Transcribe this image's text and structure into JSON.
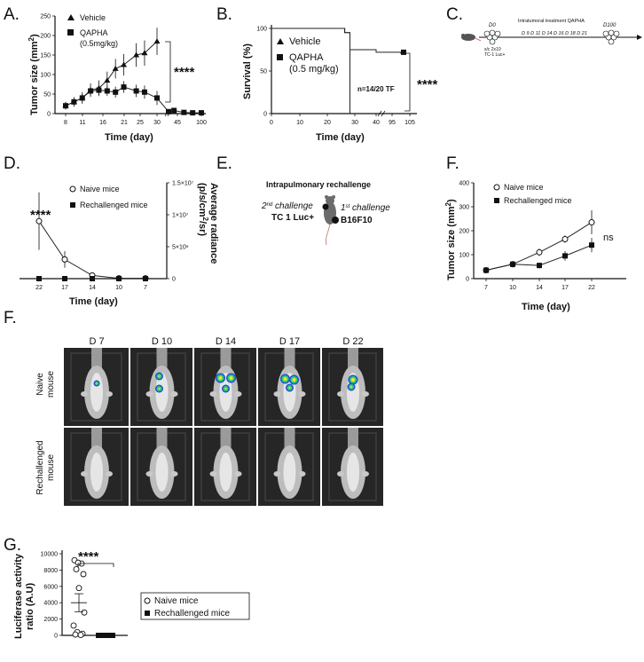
{
  "panels": {
    "A": "A.",
    "B": "B.",
    "C": "C.",
    "D": "D.",
    "E": "E.",
    "F1": "F.",
    "F2": "F.",
    "G": "G."
  },
  "panelA": {
    "ylabel": "Tumor size (mm²)",
    "ylabel_base": "Tumor size (mm",
    "ylabel_sup": "2",
    "ylabel_end": ")",
    "xlabel": "Time (day)",
    "legend": [
      "Vehicle",
      "QAPHA",
      "(0.5mg/kg)"
    ],
    "significance": "****",
    "yticks": [
      "0",
      "50",
      "100",
      "150",
      "200",
      "250"
    ],
    "xticks": [
      "8",
      "11",
      "16",
      "21",
      "25",
      "30",
      "45",
      "100"
    ]
  },
  "panelB": {
    "ylabel": "Survival (%)",
    "xlabel": "Time (day)",
    "legend": [
      "Vehicle",
      "QAPHA",
      "(0.5 mg/kg)"
    ],
    "annotation": "n=14/20 TF",
    "significance": "****",
    "yticks": [
      "0",
      "50",
      "100"
    ],
    "xticks": [
      "0",
      "10",
      "20",
      "30",
      "40",
      "95",
      "105"
    ]
  },
  "panelC": {
    "d0": "D0",
    "treatment": "Intratumoral treatment  QAPHA",
    "days": "D 9  D 11  D 14  D 16 D 18 D 21",
    "d100": "D100",
    "sc1": "s/c 2x10",
    "sc2": "TC-1 Luc+"
  },
  "panelD": {
    "xlabel": "Time (day)",
    "ylabel_base": "Average radiance",
    "ylabel_2": "(p/s/cm",
    "ylabel_sup": "2",
    "ylabel_end": "/sr)",
    "legend": [
      "Naive mice",
      "Rechallenged mice"
    ],
    "significance": "****",
    "yticks": [
      "0",
      "5×10⁶",
      "1×10⁷",
      "1.5×10⁷"
    ],
    "xticks": [
      "22",
      "17",
      "14",
      "10",
      "7"
    ]
  },
  "panelE": {
    "title": "Intrapulmonary rechallenge",
    "second": "2",
    "second_sup": "nd",
    "second_rest": " challenge",
    "second_line2": "TC 1 Luc+",
    "first": "1",
    "first_sup": "st",
    "first_rest": " challenge",
    "first_line2": "B16F10"
  },
  "panelF1": {
    "ylabel": "Tumor size (mm²)",
    "ylabel_base": "Tumor size (mm",
    "ylabel_sup": "2",
    "ylabel_end": ")",
    "xlabel": "Time (day)",
    "legend": [
      "Naive mice",
      "Rechallenged mice"
    ],
    "significance": "ns",
    "yticks": [
      "0",
      "100",
      "200",
      "300",
      "400"
    ],
    "xticks": [
      "7",
      "10",
      "14",
      "17",
      "22"
    ]
  },
  "panelF2": {
    "days": [
      "D 7",
      "D 10",
      "D 14",
      "D 17",
      "D 22"
    ],
    "rows": [
      "Naive mouse",
      "Rechallenged mouse"
    ],
    "row1a": "Naive",
    "row1b": "mouse",
    "row2a": "Rechallenged",
    "row2b": "mouse"
  },
  "panelG": {
    "ylabel": "Luciferase activity",
    "ylabel2": "ratio (A.U)",
    "significance": "****",
    "legend": [
      "Naive mice",
      "Rechallenged mice"
    ],
    "yticks": [
      "0",
      "2000",
      "4000",
      "6000",
      "8000",
      "10000"
    ]
  },
  "chart_data": [
    {
      "type": "line",
      "panel": "A",
      "xlabel": "Time (day)",
      "ylabel": "Tumor size (mm²)",
      "ylim": [
        0,
        250
      ],
      "series": [
        {
          "name": "Vehicle",
          "x": [
            8,
            10,
            12,
            14,
            16,
            18,
            20,
            22,
            25,
            27,
            30
          ],
          "values": [
            20,
            30,
            40,
            60,
            65,
            85,
            115,
            125,
            150,
            155,
            185
          ]
        },
        {
          "name": "QAPHA (0.5mg/kg)",
          "x": [
            8,
            10,
            12,
            14,
            16,
            18,
            20,
            22,
            25,
            27,
            30,
            32,
            40,
            60,
            80,
            100
          ],
          "values": [
            20,
            30,
            40,
            58,
            60,
            58,
            55,
            68,
            58,
            55,
            40,
            5,
            8,
            3,
            2,
            2
          ]
        }
      ]
    },
    {
      "type": "line",
      "panel": "B",
      "xlabel": "Time (day)",
      "ylabel": "Survival (%)",
      "ylim": [
        0,
        100
      ],
      "series": [
        {
          "name": "Vehicle",
          "x": [
            0,
            25,
            28,
            30
          ],
          "values": [
            100,
            100,
            95,
            0
          ]
        },
        {
          "name": "QAPHA (0.5 mg/kg)",
          "x": [
            0,
            28,
            30,
            40,
            100
          ],
          "values": [
            100,
            95,
            75,
            72,
            70
          ]
        }
      ]
    },
    {
      "type": "line",
      "panel": "D",
      "xlabel": "Time (day)",
      "categories": [
        "22",
        "17",
        "14",
        "10",
        "7"
      ],
      "series": [
        {
          "name": "Naive mice",
          "values": [
            9000000,
            3000000,
            500000,
            50000,
            50000
          ]
        },
        {
          "name": "Rechallenged mice",
          "values": [
            0,
            0,
            0,
            0,
            0
          ]
        }
      ]
    },
    {
      "type": "line",
      "panel": "F",
      "xlabel": "Time (day)",
      "ylabel": "Tumor size (mm²)",
      "ylim": [
        0,
        400
      ],
      "categories": [
        "7",
        "10",
        "14",
        "17",
        "22"
      ],
      "series": [
        {
          "name": "Naive mice",
          "values": [
            35,
            60,
            110,
            165,
            235
          ]
        },
        {
          "name": "Rechallenged mice",
          "values": [
            35,
            60,
            55,
            95,
            140
          ]
        }
      ]
    },
    {
      "type": "scatter",
      "panel": "G",
      "ylabel": "Luciferase activity ratio (A.U)",
      "ylim": [
        0,
        10000
      ],
      "series": [
        {
          "name": "Naive mice",
          "values": [
            9200,
            8800,
            8100,
            7500,
            5800,
            2800,
            1200,
            400,
            200,
            100,
            50,
            8900
          ],
          "mean": 4000
        },
        {
          "name": "Rechallenged mice",
          "values": [
            0,
            0,
            0,
            0,
            0,
            0,
            0,
            0,
            0,
            0
          ],
          "mean": 0
        }
      ]
    }
  ]
}
